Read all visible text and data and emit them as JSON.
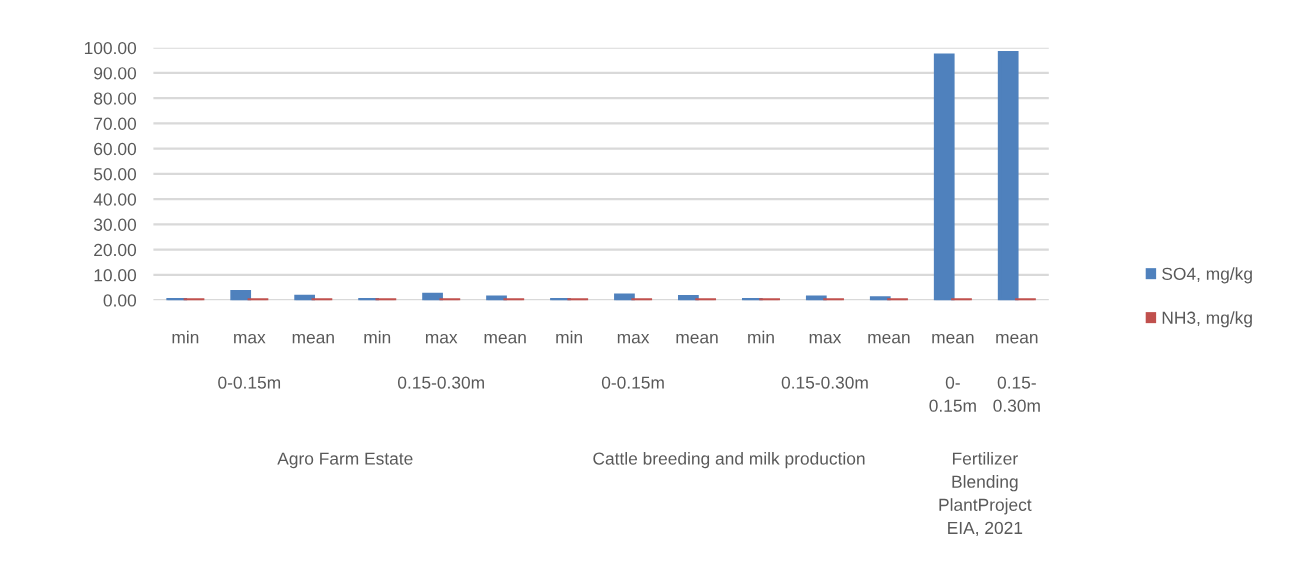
{
  "chart_data": {
    "type": "bar",
    "categories": [
      "min",
      "max",
      "mean",
      "min",
      "max",
      "mean",
      "min",
      "max",
      "mean",
      "min",
      "max",
      "mean",
      "mean",
      "mean"
    ],
    "series": [
      {
        "name": "SO4, mg/kg",
        "color": "#4f81bd",
        "values": [
          0.2,
          3.3,
          1.5,
          0.2,
          2.2,
          1.2,
          0.2,
          1.9,
          1.4,
          0.2,
          1.2,
          0.9,
          97,
          98
        ]
      },
      {
        "name": "NH3, mg/kg",
        "color": "#c0504d",
        "values": [
          0.1,
          0.1,
          0.1,
          0.1,
          0.1,
          0.1,
          0.1,
          0.1,
          0.1,
          0.1,
          0.1,
          0.1,
          0.1,
          0.1
        ]
      }
    ],
    "ylim": [
      0,
      100
    ],
    "yticks": [
      {
        "value": 0,
        "label": "0.00"
      },
      {
        "value": 10,
        "label": "10.00"
      },
      {
        "value": 20,
        "label": "20.00"
      },
      {
        "value": 30,
        "label": "30.00"
      },
      {
        "value": 40,
        "label": "40.00"
      },
      {
        "value": 50,
        "label": "50.00"
      },
      {
        "value": 60,
        "label": "60.00"
      },
      {
        "value": 70,
        "label": "70.00"
      },
      {
        "value": 80,
        "label": "80.00"
      },
      {
        "value": 90,
        "label": "90.00"
      },
      {
        "value": 100,
        "label": "100.00"
      }
    ],
    "grid": "y",
    "legend": "right",
    "annotations": [
      "0-0.15m",
      "0.15-0.30m",
      "0-0.15m",
      "0.15-0.30m",
      "0-\n0.15m",
      "0.15-\n0.30m",
      "Agro Farm Estate",
      "Cattle breeding and milk production",
      "Fertilizer\nBlending\nPlantProject\nEIA, 2021"
    ]
  }
}
